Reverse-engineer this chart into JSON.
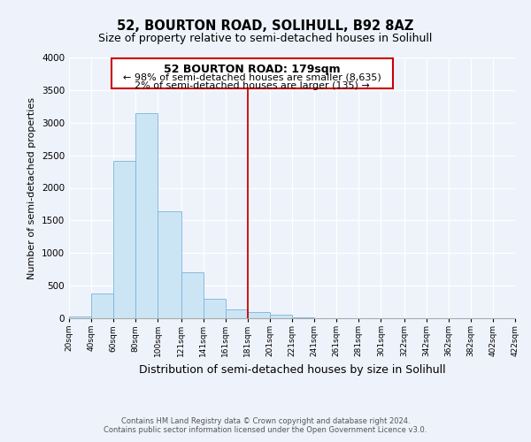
{
  "title": "52, BOURTON ROAD, SOLIHULL, B92 8AZ",
  "subtitle": "Size of property relative to semi-detached houses in Solihull",
  "xlabel": "Distribution of semi-detached houses by size in Solihull",
  "ylabel": "Number of semi-detached properties",
  "footer_line1": "Contains HM Land Registry data © Crown copyright and database right 2024.",
  "footer_line2": "Contains public sector information licensed under the Open Government Licence v3.0.",
  "annotation_title": "52 BOURTON ROAD: 179sqm",
  "annotation_line1": "← 98% of semi-detached houses are smaller (8,635)",
  "annotation_line2": "2% of semi-detached houses are larger (135) →",
  "vline_x": 181,
  "bar_bins": [
    20,
    40,
    60,
    80,
    100,
    121,
    141,
    161,
    181,
    201,
    221,
    241,
    261,
    281,
    301,
    322,
    342,
    362,
    382,
    402,
    422
  ],
  "bar_heights": [
    30,
    375,
    2420,
    3140,
    1640,
    700,
    295,
    140,
    90,
    55,
    10,
    0,
    0,
    0,
    0,
    0,
    0,
    0,
    0,
    0
  ],
  "bar_color": "#cce5f5",
  "bar_edgecolor": "#7ab5d8",
  "vline_color": "#cc0000",
  "annotation_box_edgecolor": "#cc0000",
  "ylim": [
    0,
    4000
  ],
  "yticks": [
    0,
    500,
    1000,
    1500,
    2000,
    2500,
    3000,
    3500,
    4000
  ],
  "background_color": "#eef2fb",
  "title_fontsize": 10.5,
  "subtitle_fontsize": 9,
  "annotation_fontsize": 8,
  "axis_label_fontsize": 8,
  "xlabel_fontsize": 9,
  "xtick_fontsize": 6.5,
  "ytick_fontsize": 7.5,
  "footer_fontsize": 6
}
